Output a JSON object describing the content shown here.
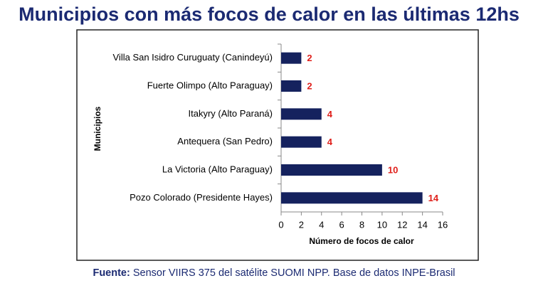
{
  "chart_data": {
    "type": "barh",
    "title": "Municipios con más focos de calor en las últimas 12hs",
    "y_label": "Municipios",
    "x_label": "Número de focos de calor",
    "categories": [
      "Villa San Isidro Curuguaty (Canindeyú)",
      "Fuerte Olimpo (Alto Paraguay)",
      "Itakyry (Alto Paraná)",
      "Antequera (San Pedro)",
      "La Victoria (Alto Paraguay)",
      "Pozo Colorado (Presidente Hayes)"
    ],
    "values": [
      2,
      2,
      4,
      4,
      10,
      14
    ],
    "color": "#15225e",
    "label_color": "#e0201b",
    "xlim": [
      0,
      16
    ],
    "xticks": [
      0,
      2,
      4,
      6,
      8,
      10,
      12,
      14,
      16
    ],
    "source_label": "Fuente:",
    "source_text": "Sensor VIIRS 375 del satélite SUOMI NPP. Base de datos INPE-Brasil"
  }
}
